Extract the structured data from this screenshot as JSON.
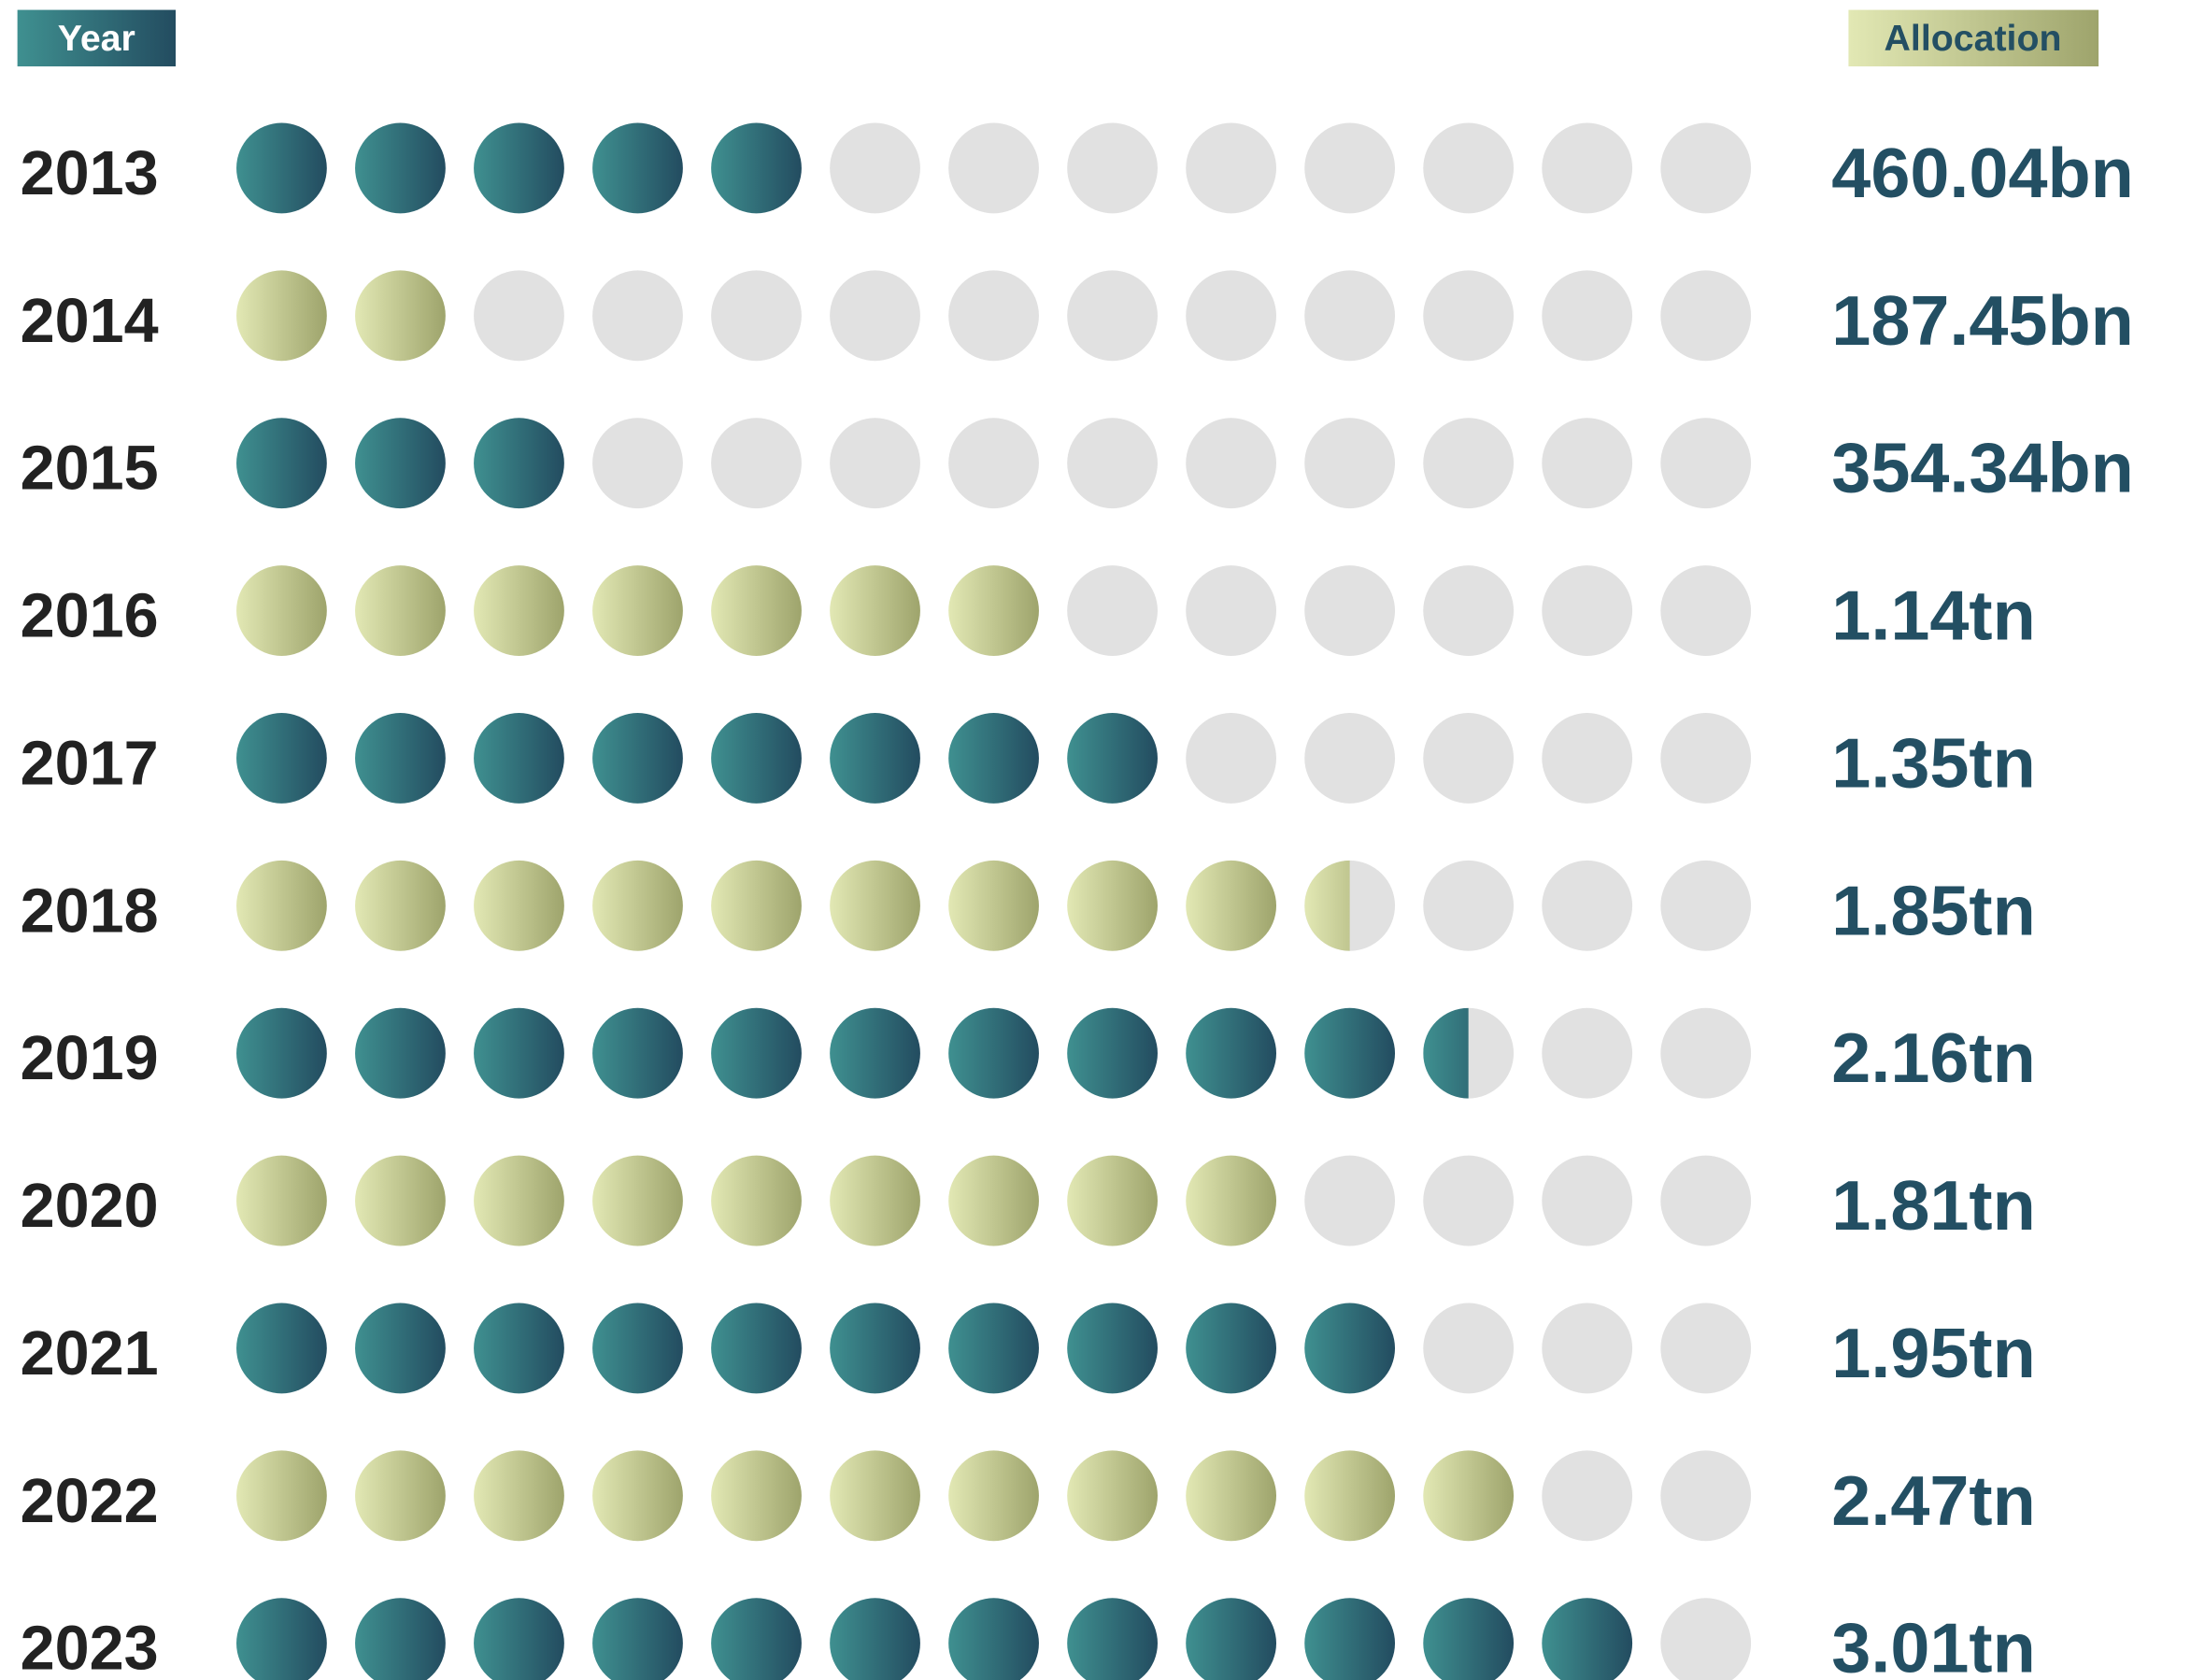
{
  "chart_data": {
    "type": "pictograph",
    "column_headers": [
      "Year",
      "Allocation"
    ],
    "categories": [
      "2013",
      "2014",
      "2015",
      "2016",
      "2017",
      "2018",
      "2019",
      "2020",
      "2021",
      "2022",
      "2023"
    ],
    "values": [
      5,
      2,
      3,
      7,
      8,
      9.5,
      10.5,
      9,
      10,
      11,
      12
    ],
    "allocations": [
      "460.04bn",
      "187.45bn",
      "354.34bn",
      "1.14tn",
      "1.35tn",
      "1.85tn",
      "2.16tn",
      "1.81tn",
      "1.95tn",
      "2.47tn",
      "3.01tn"
    ],
    "max_dots": 13,
    "colors": [
      [
        "#3f9090",
        "#234c60"
      ],
      [
        "#e2e8b4",
        "#9ea46c"
      ]
    ],
    "empty_color": "#e1e1e1",
    "label_color": "#234f63"
  }
}
